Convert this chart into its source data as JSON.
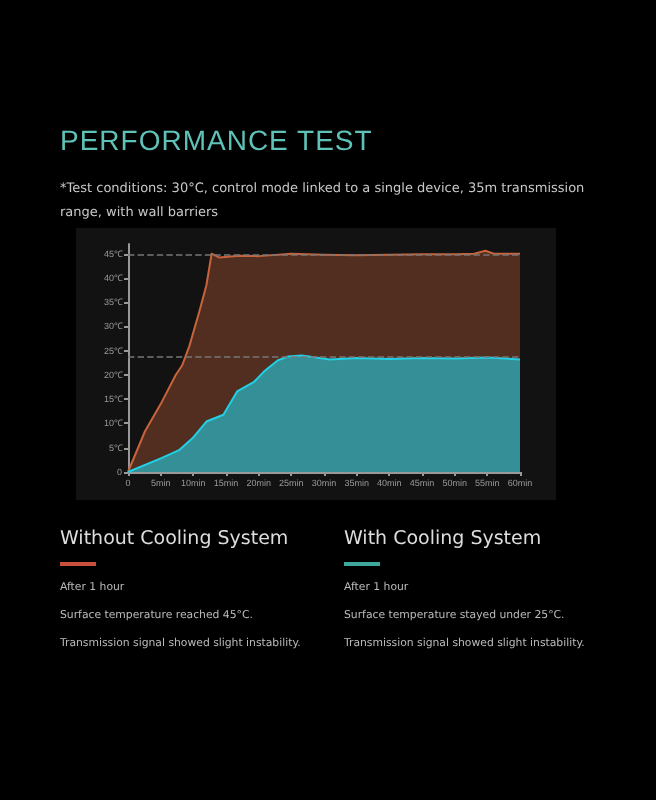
{
  "chart_data": {
    "type": "area",
    "title": "PERFORMANCE TEST",
    "subtitle": "*Test conditions: 30°C, control mode linked to a single device, 35m transmission range, with wall barriers",
    "annotations": [
      "Without Cooling System",
      "After 1 hour",
      "Surface temperature reached 45°C.",
      "Transmission signal showed slight instability.",
      "With Cooling System",
      "After 1 hour",
      "Surface temperature stayed under 25°C.",
      "Transmission signal showed slight instability."
    ],
    "series": [
      {
        "color": "#c8643c",
        "x": [
          0,
          2.6,
          5.2,
          7.3,
          8.3,
          9.4,
          10.9,
          12,
          12.8,
          14,
          17,
          20,
          25,
          30,
          35,
          40,
          45,
          50,
          53,
          54.7,
          56,
          60
        ],
        "values": [
          0,
          8.4,
          14.5,
          20,
          22,
          26,
          33,
          38.5,
          45,
          44.2,
          44.6,
          44.5,
          45,
          44.8,
          44.7,
          44.8,
          44.9,
          44.9,
          45,
          45.6,
          45,
          45
        ]
      },
      {
        "color": "#22d0e6",
        "x": [
          0,
          5.2,
          7.8,
          9.9,
          12,
          14.6,
          16.7,
          19.3,
          20.8,
          22.9,
          24.5,
          26.6,
          30.9,
          35,
          40,
          45,
          50,
          55,
          60
        ],
        "values": [
          0,
          2.9,
          4.5,
          7,
          10.4,
          11.8,
          16.6,
          18.6,
          20.7,
          23,
          23.8,
          24,
          23.2,
          23.5,
          23.3,
          23.5,
          23.4,
          23.6,
          23.2
        ]
      }
    ],
    "xlim": [
      0,
      60
    ],
    "xticks": [
      0,
      {
        "value": 5,
        "label": "5min"
      },
      {
        "value": 10,
        "label": "10min"
      },
      {
        "value": 15,
        "label": "15min"
      },
      {
        "value": 20,
        "label": "20min"
      },
      {
        "value": 25,
        "label": "25min"
      },
      {
        "value": 30,
        "label": "30min"
      },
      {
        "value": 35,
        "label": "35min"
      },
      {
        "value": 40,
        "label": "40min"
      },
      {
        "value": 45,
        "label": "45min"
      },
      {
        "value": 50,
        "label": "50min"
      },
      {
        "value": 55,
        "label": "55min"
      },
      {
        "value": 60,
        "label": "60min"
      }
    ],
    "ylim": [
      0,
      47
    ],
    "yticks": [
      0,
      {
        "value": 5,
        "label": "5℃"
      },
      {
        "value": 10,
        "label": "10℃"
      },
      {
        "value": 15,
        "label": "15℃"
      },
      {
        "value": 20,
        "label": "20℃"
      },
      {
        "value": 25,
        "label": "25℃"
      },
      {
        "value": 30,
        "label": "30℃"
      },
      {
        "value": 35,
        "label": "35℃"
      },
      {
        "value": 40,
        "label": "40℃"
      },
      {
        "value": 45,
        "label": "45℃"
      }
    ],
    "ref_lines": [
      {
        "axis": "y",
        "value": 45,
        "line_style": "dashed",
        "color": "#777777"
      },
      {
        "axis": "y",
        "value": 24,
        "line_style": "dashed",
        "color": "#777777"
      }
    ],
    "grid": false
  }
}
